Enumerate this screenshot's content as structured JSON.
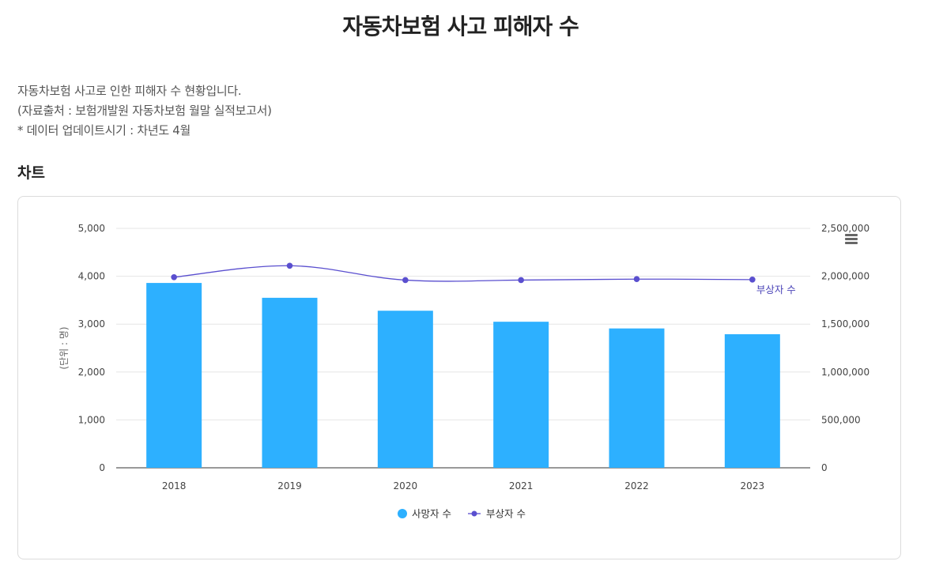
{
  "page": {
    "title": "자동차보험 사고 피해자 수",
    "description": [
      "자동차보험 사고로 인한 피해자 수 현황입니다.",
      "(자료출처 : 보험개발원 자동차보험 월말 실적보고서)",
      "* 데이터 업데이트시기 : 차년도 4월"
    ],
    "section_title": "차트"
  },
  "chart_data": {
    "type": "bar",
    "categories": [
      "2018",
      "2019",
      "2020",
      "2021",
      "2022",
      "2023"
    ],
    "series": [
      {
        "name": "사망자 수",
        "type": "bar",
        "axis": "left",
        "color": "#2db0ff",
        "values": [
          3860,
          3550,
          3280,
          3050,
          2910,
          2790
        ]
      },
      {
        "name": "부상자 수",
        "type": "line",
        "axis": "right",
        "color": "#5a4fcf",
        "values": [
          1990000,
          2110000,
          1960000,
          1960000,
          1970000,
          1965000
        ]
      }
    ],
    "left_axis": {
      "label": "(단위 : 명)",
      "ylim": [
        0,
        5000
      ],
      "ticks": [
        "0",
        "1,000",
        "2,000",
        "3,000",
        "4,000",
        "5,000"
      ]
    },
    "right_axis": {
      "ylim": [
        0,
        2500000
      ],
      "ticks": [
        "0",
        "500,000",
        "1,000,000",
        "1,500,000",
        "2,000,000",
        "2,500,000"
      ]
    },
    "line_end_label": "부상자 수",
    "legend": {
      "position": "bottom",
      "items": [
        "사망자 수",
        "부상자 수"
      ]
    },
    "grid": true
  }
}
